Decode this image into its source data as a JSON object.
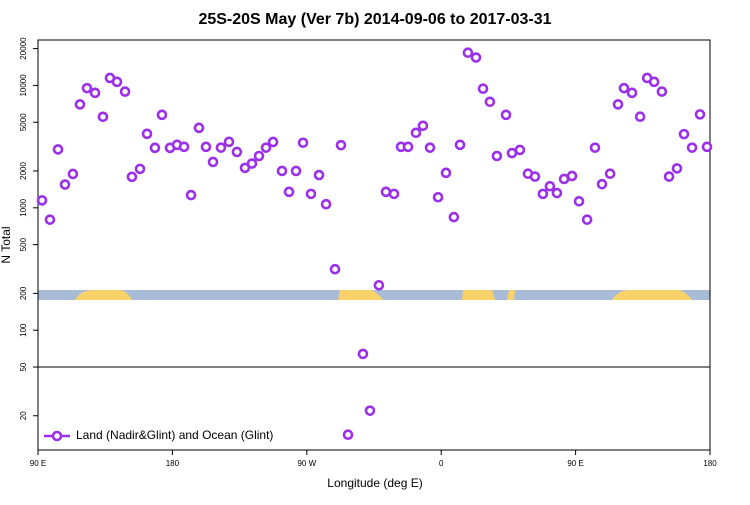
{
  "chart_data": {
    "type": "scatter",
    "title": "25S-20S May (Ver 7b)   2014-09-06 to 2017-03-31",
    "xlabel": "Longitude (deg E)",
    "ylabel": "N Total",
    "xlim": [
      90,
      540
    ],
    "xticks": [
      {
        "value": 90,
        "label": "90 E"
      },
      {
        "value": 180,
        "label": "180"
      },
      {
        "value": 270,
        "label": "90 W"
      },
      {
        "value": 360,
        "label": "0"
      },
      {
        "value": 450,
        "label": "90 E"
      },
      {
        "value": 540,
        "label": "180"
      }
    ],
    "ylim": [
      10.5,
      23500
    ],
    "log_y": true,
    "yticks": [
      20,
      50,
      100,
      200,
      500,
      1000,
      2000,
      5000,
      10000,
      20000
    ],
    "hline": 50,
    "legend": "lower left",
    "series": [
      {
        "name": "Land (Nadir&Glint) and Ocean (Glint)",
        "color": "#9b30e8",
        "x": [
          92.7,
          98,
          103.4,
          108.1,
          113.4,
          118.1,
          122.8,
          128.2,
          133.5,
          138.2,
          142.9,
          148.3,
          152.9,
          158.3,
          163,
          168.3,
          173,
          178.4,
          183.1,
          187.8,
          192.5,
          197.8,
          202.5,
          207.2,
          212.5,
          217.9,
          223.2,
          228.6,
          233.3,
          238,
          242.7,
          247.4,
          253.4,
          258.1,
          262.8,
          267.5,
          272.8,
          278.2,
          282.9,
          288.9,
          292.9,
          297.6,
          307.6,
          312.3,
          318.3,
          323,
          328.4,
          333.1,
          337.8,
          343.1,
          347.8,
          352.5,
          357.9,
          363.2,
          368.5,
          372.6,
          377.9,
          383.3,
          388,
          392.6,
          397.3,
          403.4,
          407.4,
          412.7,
          418.1,
          422.8,
          428.1,
          432.8,
          437.5,
          442.3,
          447.6,
          452.3,
          457.7,
          463,
          467.7,
          473.1,
          478.4,
          482.4,
          487.8,
          493.2,
          497.9,
          502.6,
          507.8,
          512.6,
          517.9,
          522.6,
          528,
          533.3,
          538
        ],
        "values": [
          1150,
          800,
          3000,
          1550,
          1890,
          7000,
          9500,
          8700,
          5540,
          11500,
          10700,
          8900,
          1790,
          2080,
          4020,
          3090,
          5750,
          3090,
          3270,
          3150,
          1270,
          4500,
          3150,
          2370,
          3100,
          3460,
          2860,
          2120,
          2300,
          2650,
          3100,
          3450,
          2000,
          1350,
          2000,
          3400,
          1300,
          1850,
          1070,
          315,
          3250,
          14,
          64,
          22,
          233,
          1350,
          1300,
          3150,
          3150,
          4100,
          4680,
          3100,
          1220,
          1930,
          840,
          3270,
          18500,
          16900,
          9400,
          7350,
          2650,
          5750,
          2800,
          2970,
          1900,
          1800,
          1300,
          1500,
          1320,
          1720,
          1820,
          1130,
          800,
          3100,
          1560,
          1900,
          7000,
          9500,
          8700,
          5550,
          11500,
          10700,
          8900,
          1800,
          2100,
          4000,
          3100,
          5800,
          3150
        ]
      }
    ]
  }
}
